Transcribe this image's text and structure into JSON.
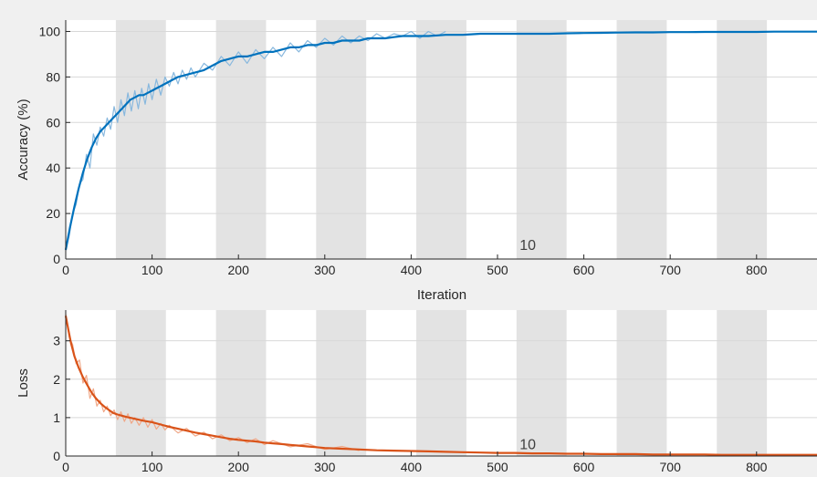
{
  "colors": {
    "accuracy_line": "#0072bd",
    "accuracy_raw": "#88b8de",
    "loss_line": "#d95319",
    "loss_raw": "#f0a888",
    "epoch_band": "#e3e3e3",
    "figure_background": "#f0f0f0",
    "axes_background": "#ffffff"
  },
  "chart_data": [
    {
      "type": "line",
      "xlabel": "Iteration",
      "ylabel": "Accuracy (%)",
      "xlim": [
        0,
        870
      ],
      "ylim": [
        0,
        105
      ],
      "xticks": [
        0,
        100,
        200,
        300,
        400,
        500,
        600,
        700,
        800
      ],
      "yticks": [
        0,
        20,
        40,
        60,
        80,
        100
      ],
      "grid": true,
      "epoch_bands": [
        [
          58,
          116
        ],
        [
          174,
          232
        ],
        [
          290,
          348
        ],
        [
          406,
          464
        ],
        [
          522,
          580
        ],
        [
          638,
          696
        ],
        [
          754,
          812
        ]
      ],
      "annotation": {
        "text": "10",
        "x": 535,
        "y": 4
      },
      "series": [
        {
          "style": "smoothed",
          "x": [
            0,
            5,
            10,
            15,
            20,
            25,
            30,
            35,
            40,
            45,
            50,
            55,
            60,
            65,
            70,
            75,
            80,
            85,
            90,
            95,
            100,
            105,
            110,
            115,
            120,
            125,
            130,
            140,
            150,
            160,
            170,
            180,
            190,
            200,
            210,
            220,
            230,
            240,
            250,
            260,
            270,
            280,
            290,
            300,
            310,
            320,
            330,
            340,
            350,
            360,
            370,
            380,
            390,
            400,
            420,
            440,
            460,
            480,
            500,
            520,
            540,
            560,
            580,
            600,
            620,
            640,
            660,
            680,
            700,
            720,
            740,
            760,
            780,
            800,
            820,
            840,
            860,
            870
          ],
          "y": [
            4,
            14,
            23,
            31,
            38,
            44,
            49,
            53,
            56,
            58,
            60,
            62,
            64,
            66,
            68,
            70,
            71,
            72,
            72,
            73,
            74,
            75,
            76,
            77,
            78,
            79,
            80,
            81,
            82,
            83,
            85,
            87,
            88,
            89,
            89,
            90,
            91,
            91,
            92,
            93,
            93,
            94,
            94,
            95,
            95,
            96,
            96,
            96,
            97,
            97,
            97,
            97.5,
            98,
            98,
            98,
            98.5,
            98.5,
            99,
            99,
            99,
            99,
            99,
            99.2,
            99.3,
            99.4,
            99.5,
            99.6,
            99.6,
            99.7,
            99.7,
            99.8,
            99.8,
            99.8,
            99.8,
            99.9,
            99.9,
            99.9,
            99.9
          ]
        },
        {
          "style": "raw",
          "x": [
            0,
            4,
            8,
            12,
            16,
            20,
            24,
            28,
            32,
            36,
            40,
            44,
            48,
            52,
            56,
            60,
            64,
            68,
            72,
            76,
            80,
            84,
            88,
            92,
            96,
            100,
            105,
            110,
            115,
            120,
            125,
            130,
            135,
            140,
            145,
            150,
            160,
            170,
            180,
            190,
            200,
            210,
            220,
            230,
            240,
            250,
            260,
            270,
            280,
            290,
            300,
            310,
            320,
            330,
            340,
            350,
            360,
            370,
            380,
            390,
            400,
            410,
            420,
            430,
            440
          ],
          "y": [
            4,
            10,
            20,
            24,
            33,
            35,
            46,
            40,
            55,
            50,
            58,
            54,
            62,
            57,
            67,
            60,
            70,
            63,
            73,
            65,
            74,
            66,
            75,
            68,
            77,
            70,
            79,
            72,
            80,
            76,
            82,
            77,
            83,
            79,
            84,
            80,
            86,
            83,
            89,
            85,
            91,
            86,
            92,
            88,
            93,
            89,
            95,
            91,
            96,
            93,
            97,
            94,
            98,
            95,
            98,
            96,
            99,
            97,
            99,
            98,
            100,
            97,
            100,
            98,
            100
          ]
        }
      ]
    },
    {
      "type": "line",
      "xlabel": "",
      "ylabel": "Loss",
      "xlim": [
        0,
        870
      ],
      "ylim": [
        0,
        3.8
      ],
      "xticks": [
        0,
        100,
        200,
        300,
        400,
        500,
        600,
        700,
        800
      ],
      "yticks": [
        0,
        1,
        2,
        3
      ],
      "grid": true,
      "epoch_bands": [
        [
          58,
          116
        ],
        [
          174,
          232
        ],
        [
          290,
          348
        ],
        [
          406,
          464
        ],
        [
          522,
          580
        ],
        [
          638,
          696
        ],
        [
          754,
          812
        ]
      ],
      "annotation": {
        "text": "10",
        "x": 535,
        "y": 0.18
      },
      "series": [
        {
          "style": "smoothed",
          "x": [
            0,
            3,
            6,
            10,
            15,
            20,
            25,
            30,
            35,
            40,
            45,
            50,
            55,
            60,
            65,
            70,
            80,
            90,
            100,
            110,
            120,
            130,
            140,
            150,
            160,
            170,
            180,
            190,
            200,
            210,
            220,
            230,
            240,
            250,
            260,
            270,
            280,
            290,
            300,
            320,
            340,
            360,
            380,
            400,
            420,
            440,
            460,
            480,
            500,
            520,
            540,
            560,
            580,
            600,
            620,
            640,
            660,
            680,
            700,
            720,
            740,
            760,
            780,
            800,
            820,
            840,
            860,
            870
          ],
          "y": [
            3.65,
            3.3,
            2.95,
            2.6,
            2.3,
            2.05,
            1.85,
            1.65,
            1.5,
            1.38,
            1.28,
            1.2,
            1.12,
            1.08,
            1.05,
            1.02,
            0.97,
            0.92,
            0.88,
            0.82,
            0.76,
            0.71,
            0.66,
            0.61,
            0.57,
            0.53,
            0.49,
            0.45,
            0.42,
            0.4,
            0.38,
            0.35,
            0.33,
            0.31,
            0.29,
            0.27,
            0.25,
            0.23,
            0.21,
            0.19,
            0.17,
            0.15,
            0.14,
            0.13,
            0.12,
            0.11,
            0.1,
            0.09,
            0.08,
            0.08,
            0.07,
            0.07,
            0.06,
            0.06,
            0.05,
            0.05,
            0.05,
            0.04,
            0.04,
            0.04,
            0.04,
            0.03,
            0.03,
            0.03,
            0.03,
            0.03,
            0.03,
            0.03
          ]
        },
        {
          "style": "raw",
          "x": [
            0,
            4,
            8,
            12,
            16,
            20,
            24,
            28,
            32,
            36,
            40,
            44,
            48,
            52,
            56,
            60,
            64,
            68,
            72,
            76,
            80,
            85,
            90,
            95,
            100,
            105,
            110,
            115,
            120,
            130,
            140,
            150,
            160,
            170,
            180,
            190,
            200,
            210,
            220,
            230,
            240,
            260,
            280,
            300,
            320,
            340
          ],
          "y": [
            3.7,
            3.1,
            2.9,
            2.4,
            2.5,
            1.9,
            2.1,
            1.5,
            1.75,
            1.3,
            1.45,
            1.15,
            1.3,
            1.05,
            1.2,
            0.95,
            1.15,
            0.9,
            1.1,
            0.85,
            1.0,
            0.8,
            1.0,
            0.75,
            0.95,
            0.7,
            0.85,
            0.68,
            0.8,
            0.6,
            0.72,
            0.52,
            0.62,
            0.45,
            0.55,
            0.4,
            0.48,
            0.35,
            0.45,
            0.3,
            0.4,
            0.24,
            0.32,
            0.17,
            0.25,
            0.14
          ]
        }
      ]
    }
  ]
}
